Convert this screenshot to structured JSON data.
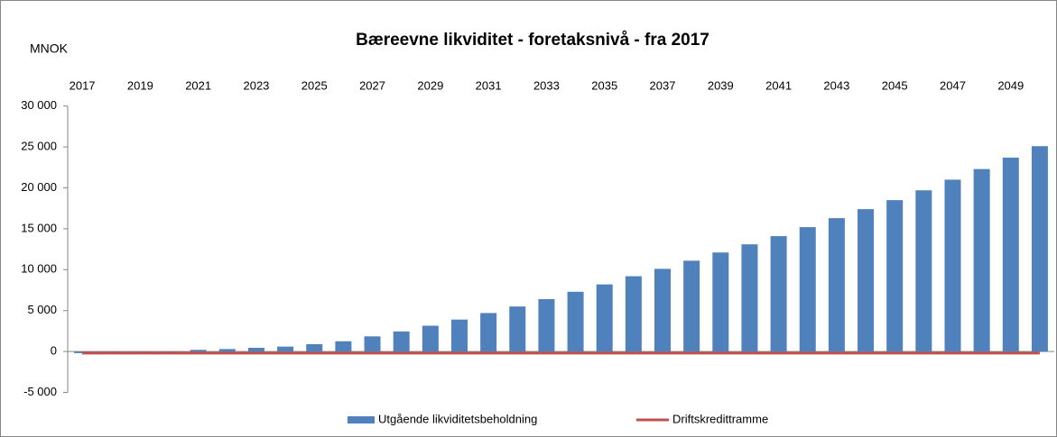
{
  "chart_data": {
    "type": "bar",
    "title": "Bæreevne likviditet - foretaksnivå - fra 2017",
    "y_label": "MNOK",
    "categories": [
      "2017",
      null,
      "2019",
      null,
      "2021",
      null,
      "2023",
      null,
      "2025",
      null,
      "2027",
      null,
      "2029",
      null,
      "2031",
      null,
      "2033",
      null,
      "2035",
      null,
      "2037",
      null,
      "2039",
      null,
      "2041",
      null,
      "2043",
      null,
      "2045",
      null,
      "2047",
      null,
      "2049",
      null
    ],
    "series": [
      {
        "name": "Utgående likviditetsbeholdning",
        "type": "bar",
        "color": "#4f81bd",
        "values": [
          -200,
          -100,
          -100,
          -50,
          200,
          300,
          450,
          600,
          900,
          1250,
          1850,
          2450,
          3150,
          3900,
          4700,
          5500,
          6400,
          7300,
          8200,
          9200,
          10100,
          11100,
          12100,
          13100,
          14100,
          15200,
          16300,
          17400,
          18500,
          19700,
          21000,
          22300,
          23700,
          25100
        ]
      },
      {
        "name": "Driftskredittramme",
        "type": "line",
        "color": "#c0504d",
        "values": [
          -200,
          -200,
          -200,
          -200,
          -200,
          -200,
          -200,
          -200,
          -200,
          -200,
          -200,
          -200,
          -200,
          -200,
          -200,
          -200,
          -200,
          -200,
          -200,
          -200,
          -200,
          -200,
          -200,
          -200,
          -200,
          -200,
          -200,
          -200,
          -200,
          -200,
          -200,
          -200,
          -200,
          -200
        ]
      }
    ],
    "ylim": [
      -5000,
      30000
    ],
    "yticks": [
      {
        "value": -5000,
        "label": "-5 000"
      },
      0,
      {
        "value": 5000,
        "label": "5 000"
      },
      {
        "value": 10000,
        "label": "10 000"
      },
      {
        "value": 15000,
        "label": "15 000"
      },
      {
        "value": 20000,
        "label": "20 000"
      },
      {
        "value": 25000,
        "label": "25 000"
      },
      {
        "value": 30000,
        "label": "30 000"
      }
    ],
    "grid": false,
    "legend": "bottom"
  }
}
